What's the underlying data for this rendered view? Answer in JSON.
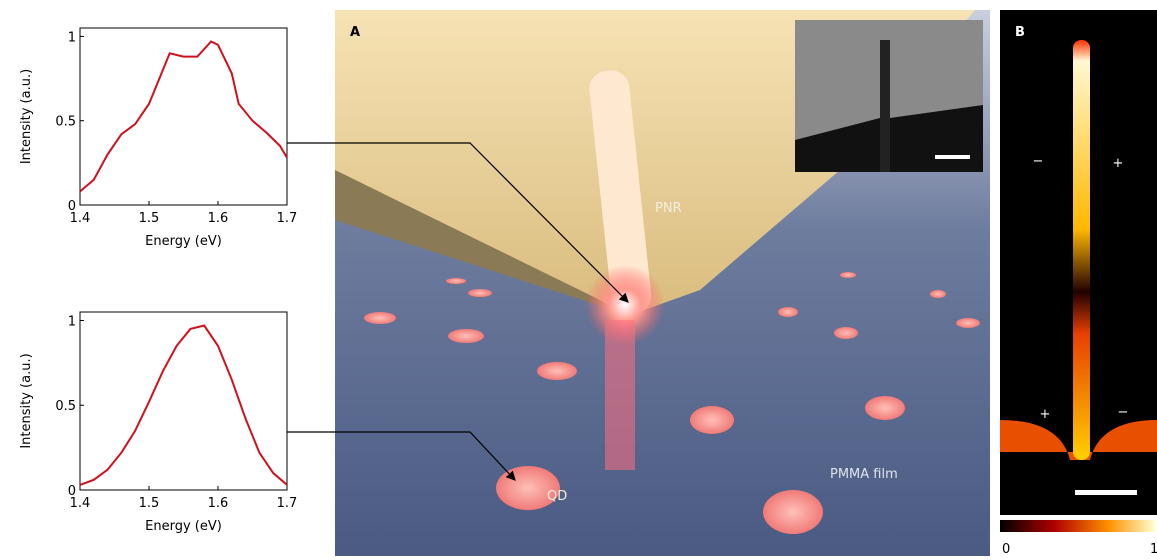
{
  "chart_data": [
    {
      "type": "line",
      "xlabel": "Energy (eV)",
      "ylabel": "Intensity (a.u.)",
      "color": "#d0101c",
      "x": [
        1.4,
        1.42,
        1.44,
        1.46,
        1.48,
        1.5,
        1.52,
        1.53,
        1.55,
        1.57,
        1.59,
        1.6,
        1.62,
        1.63,
        1.65,
        1.67,
        1.69,
        1.7
      ],
      "values": [
        0.08,
        0.15,
        0.3,
        0.42,
        0.48,
        0.6,
        0.8,
        0.9,
        0.88,
        0.88,
        0.97,
        0.95,
        0.78,
        0.6,
        0.5,
        0.43,
        0.35,
        0.28
      ],
      "xlim": [
        1.4,
        1.7
      ],
      "xticks": [
        1.4,
        1.5,
        1.6,
        1.7
      ],
      "ylim": [
        0,
        1.05
      ],
      "yticks": [
        0,
        0.5,
        1
      ]
    },
    {
      "type": "line",
      "xlabel": "Energy (eV)",
      "ylabel": "Intensity (a.u.)",
      "color": "#d0101c",
      "x": [
        1.4,
        1.42,
        1.44,
        1.46,
        1.48,
        1.5,
        1.52,
        1.54,
        1.56,
        1.58,
        1.6,
        1.62,
        1.64,
        1.66,
        1.68,
        1.7
      ],
      "values": [
        0.03,
        0.06,
        0.12,
        0.22,
        0.35,
        0.52,
        0.7,
        0.85,
        0.95,
        0.97,
        0.85,
        0.65,
        0.42,
        0.22,
        0.1,
        0.03
      ],
      "xlim": [
        1.4,
        1.7
      ],
      "xticks": [
        1.4,
        1.5,
        1.6,
        1.7
      ],
      "ylim": [
        0,
        1.05
      ],
      "yticks": [
        0,
        0.5,
        1
      ]
    }
  ],
  "figure": {
    "panel_a": "A",
    "panel_b": "B",
    "pnr": "PNR",
    "qd": "QD",
    "film": "PMMA film",
    "signs": [
      "−",
      "+",
      "+",
      "−"
    ],
    "colorbar_ticks": [
      0,
      1
    ]
  }
}
